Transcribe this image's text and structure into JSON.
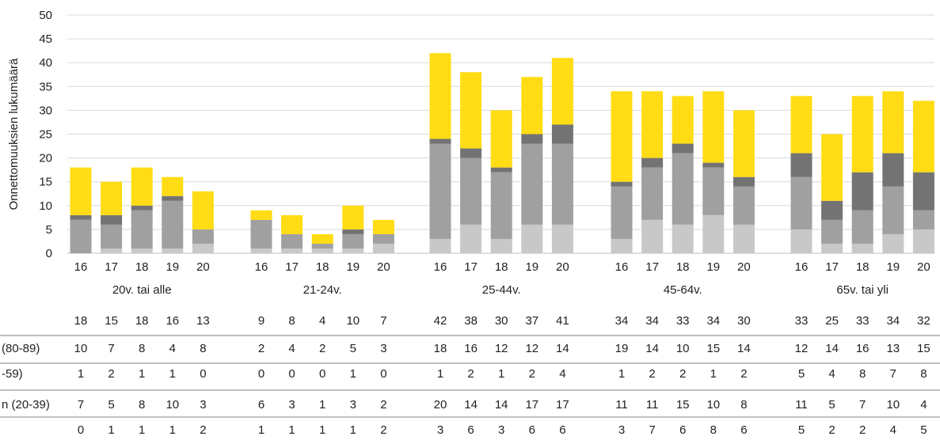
{
  "chart_data": {
    "type": "bar",
    "stacked": true,
    "ylabel": "Onnettomuuksien lukumäärä",
    "ylim": [
      0,
      50
    ],
    "yticks": [
      0,
      5,
      10,
      15,
      20,
      25,
      30,
      35,
      40,
      45,
      50
    ],
    "grid": true,
    "groups": [
      "20v. tai alle",
      "21-24v.",
      "25-44v.",
      "45-64v.",
      "65v. tai yli"
    ],
    "years": [
      "16",
      "17",
      "18",
      "19",
      "20"
    ],
    "series": [
      {
        "row_label": "",
        "color": "#c8c8c8",
        "values": [
          [
            0,
            1,
            1,
            1,
            2
          ],
          [
            1,
            1,
            1,
            1,
            2
          ],
          [
            3,
            6,
            3,
            6,
            6
          ],
          [
            3,
            7,
            6,
            8,
            6
          ],
          [
            5,
            2,
            2,
            4,
            5
          ]
        ]
      },
      {
        "row_label": "n (20-39)",
        "color": "#a0a0a0",
        "values": [
          [
            7,
            5,
            8,
            10,
            3
          ],
          [
            6,
            3,
            1,
            3,
            2
          ],
          [
            20,
            14,
            14,
            17,
            17
          ],
          [
            11,
            11,
            15,
            10,
            8
          ],
          [
            11,
            5,
            7,
            10,
            4
          ]
        ]
      },
      {
        "row_label": "-59)",
        "color": "#737373",
        "values": [
          [
            1,
            2,
            1,
            1,
            0
          ],
          [
            0,
            0,
            0,
            1,
            0
          ],
          [
            1,
            2,
            1,
            2,
            4
          ],
          [
            1,
            2,
            2,
            1,
            2
          ],
          [
            5,
            4,
            8,
            7,
            8
          ]
        ]
      },
      {
        "row_label": "(80-89)",
        "color": "#ffdc14",
        "values": [
          [
            10,
            7,
            8,
            4,
            8
          ],
          [
            2,
            4,
            2,
            5,
            3
          ],
          [
            18,
            16,
            12,
            12,
            14
          ],
          [
            19,
            14,
            10,
            15,
            14
          ],
          [
            12,
            14,
            16,
            13,
            15
          ]
        ]
      }
    ],
    "totals": [
      [
        18,
        15,
        18,
        16,
        13
      ],
      [
        9,
        8,
        4,
        10,
        7
      ],
      [
        42,
        38,
        30,
        37,
        41
      ],
      [
        34,
        34,
        33,
        34,
        30
      ],
      [
        33,
        25,
        33,
        34,
        32
      ]
    ]
  }
}
